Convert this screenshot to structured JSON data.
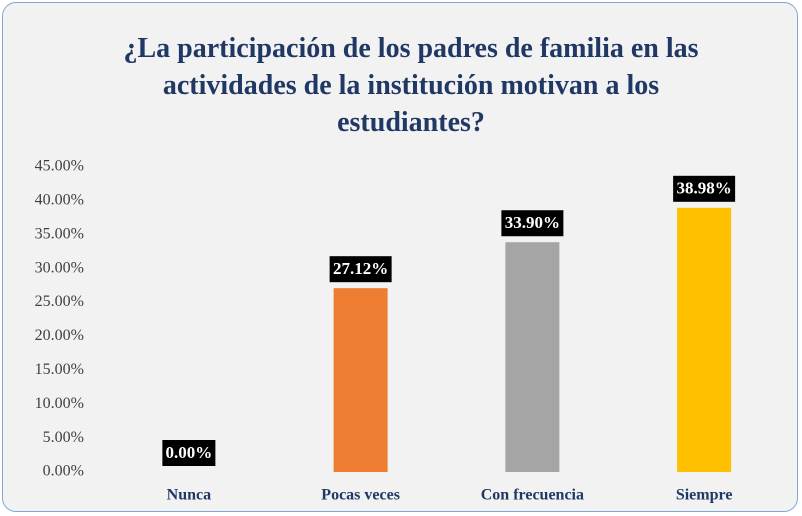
{
  "chart_data": {
    "type": "bar",
    "title": "¿La participación de los padres de familia en las actividades de la institución motivan a los estudiantes?",
    "categories": [
      "Nunca",
      "Pocas veces",
      "Con frecuencia",
      "Siempre"
    ],
    "values": [
      0,
      27.12,
      33.9,
      38.98
    ],
    "value_labels": [
      "0.00%",
      "27.12%",
      "33.90%",
      "38.98%"
    ],
    "colors": [
      "#4472c4",
      "#ed7d31",
      "#a5a5a5",
      "#ffc000"
    ],
    "ylim": [
      0,
      45
    ],
    "yticks": [
      {
        "value": 0,
        "label": "0.00%"
      },
      {
        "value": 5,
        "label": "5.00%"
      },
      {
        "value": 10,
        "label": "10.00%"
      },
      {
        "value": 15,
        "label": "15.00%"
      },
      {
        "value": 20,
        "label": "20.00%"
      },
      {
        "value": 25,
        "label": "25.00%"
      },
      {
        "value": 30,
        "label": "30.00%"
      },
      {
        "value": 35,
        "label": "35.00%"
      },
      {
        "value": 40,
        "label": "40.00%"
      },
      {
        "value": 45,
        "label": "45.00%"
      }
    ],
    "grid": false
  }
}
